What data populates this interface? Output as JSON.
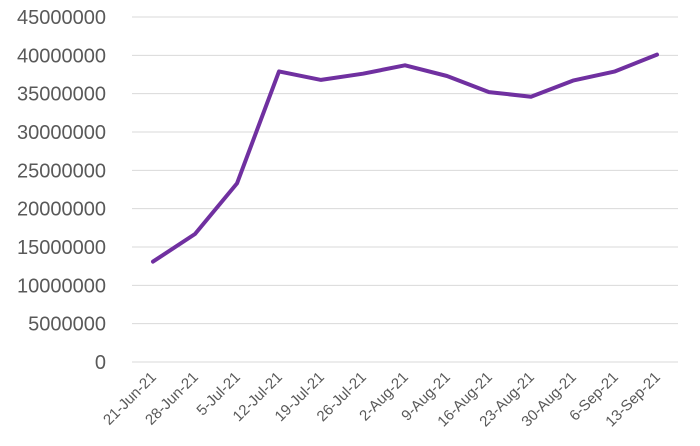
{
  "chart_data": {
    "type": "line",
    "title": "",
    "xlabel": "",
    "ylabel": "",
    "categories": [
      "21-Jun-21",
      "28-Jun-21",
      "5-Jul-21",
      "12-Jul-21",
      "19-Jul-21",
      "26-Jul-21",
      "2-Aug-21",
      "9-Aug-21",
      "16-Aug-21",
      "23-Aug-21",
      "30-Aug-21",
      "6-Sep-21",
      "13-Sep-21"
    ],
    "series": [
      {
        "values": [
          13100000,
          16700000,
          23300000,
          37900000,
          36800000,
          37600000,
          38700000,
          37300000,
          35200000,
          34600000,
          36700000,
          37900000,
          40100000
        ],
        "color": "#7030a0"
      }
    ],
    "ylim": [
      0,
      45000000
    ],
    "yticks": [
      "0",
      "5000000",
      "10000000",
      "15000000",
      "20000000",
      "25000000",
      "30000000",
      "35000000",
      "40000000",
      "45000000"
    ],
    "grid": true,
    "legend": "none"
  }
}
